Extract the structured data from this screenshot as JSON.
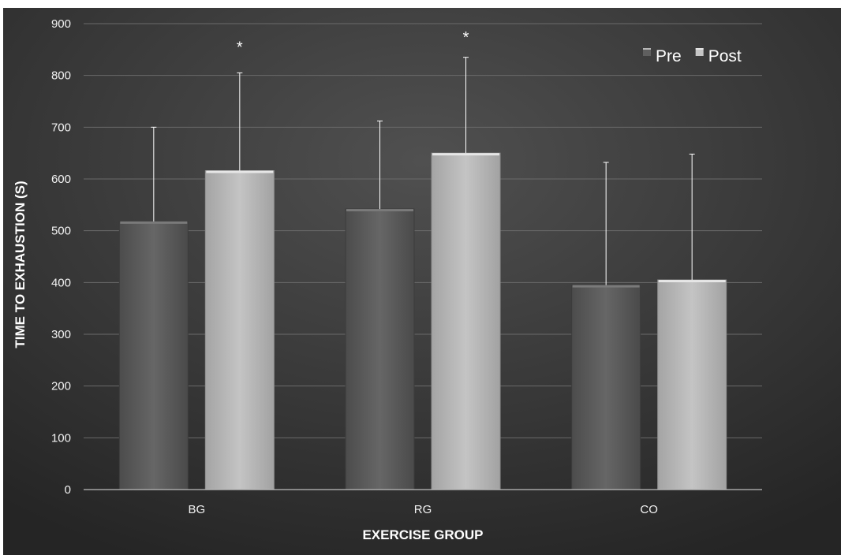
{
  "chart_data": {
    "type": "bar",
    "title": "",
    "xlabel": "EXERCISE GROUP",
    "ylabel": "TIME TO EXHAUSTION (S)",
    "categories": [
      "BG",
      "RG",
      "CO"
    ],
    "series": [
      {
        "name": "Pre",
        "values": [
          518,
          542,
          395
        ],
        "error": [
          182,
          170,
          237
        ],
        "color": "#5a5a5a"
      },
      {
        "name": "Post",
        "values": [
          616,
          650,
          405
        ],
        "error": [
          189,
          185,
          243
        ],
        "color": "#b5b5b5"
      }
    ],
    "annotations": [
      {
        "category": "BG",
        "series": "Post",
        "text": "*"
      },
      {
        "category": "RG",
        "series": "Post",
        "text": "*"
      }
    ],
    "ylim": [
      0,
      900
    ],
    "yticks": [
      "0",
      "100",
      "200",
      "300",
      "400",
      "500",
      "600",
      "700",
      "800",
      "900"
    ],
    "grid": true,
    "legend_position": "top-right",
    "colors": {
      "background_light": "#4f4f4f",
      "background_dark": "#262626",
      "gridline": "#6a6a6a",
      "error_bar": "#ffffff"
    }
  }
}
